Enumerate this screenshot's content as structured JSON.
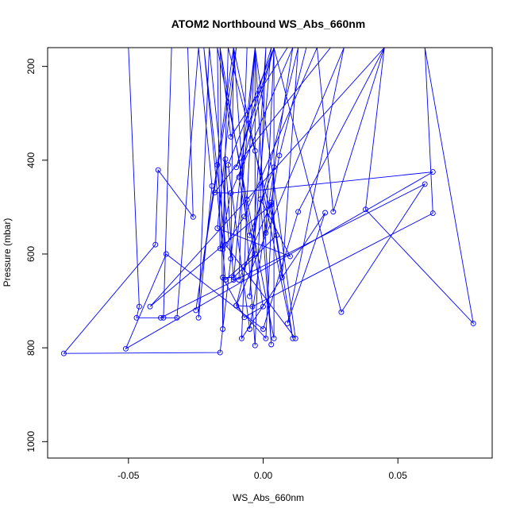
{
  "chart_data": {
    "type": "line",
    "title": "ATOM2 Northbound WS_Abs_660nm",
    "xlabel": "WS_Abs_660nm",
    "ylabel": "Pressure (mbar)",
    "xlim": [
      -0.08,
      0.085
    ],
    "ylim": [
      1035,
      160
    ],
    "y_reversed": true,
    "x_ticks": [
      -0.05,
      0.0,
      0.05
    ],
    "x_tick_labels": [
      "-0.05",
      "0.00",
      "0.05"
    ],
    "y_ticks": [
      200,
      400,
      600,
      800,
      1000
    ],
    "y_tick_labels": [
      "200",
      "400",
      "600",
      "800",
      "1000"
    ],
    "grid": false,
    "legend": "none",
    "series_color": "#0000ff",
    "series": [
      {
        "points": [
          [
            -0.05,
            160
          ],
          [
            -0.046,
            712
          ],
          [
            -0.047,
            736
          ],
          [
            -0.037,
            736
          ],
          [
            -0.034,
            160
          ],
          [
            -0.028,
            160
          ],
          [
            -0.026,
            521
          ],
          [
            -0.039,
            421
          ],
          [
            -0.04,
            580
          ],
          [
            -0.074,
            812
          ],
          [
            -0.016,
            810
          ],
          [
            -0.003,
            160
          ],
          [
            -0.011,
            655
          ],
          [
            -0.014,
            398
          ],
          [
            -0.015,
            760
          ],
          [
            -0.016,
            160
          ],
          [
            0.025,
            160
          ],
          [
            -0.018,
            469
          ],
          [
            -0.012,
            470
          ],
          [
            -0.016,
            588
          ],
          [
            -0.017,
            160
          ],
          [
            0.004,
            780
          ],
          [
            0.004,
            160
          ],
          [
            -0.013,
            410
          ],
          [
            -0.005,
            760
          ],
          [
            0.011,
            160
          ],
          [
            -0.012,
            470
          ],
          [
            0.063,
            425
          ],
          [
            -0.051,
            802
          ],
          [
            -0.036,
            600
          ],
          [
            0.0,
            760
          ],
          [
            0.013,
            510
          ],
          [
            0.045,
            160
          ],
          [
            0.038,
            505
          ],
          [
            0.078,
            748
          ],
          [
            0.06,
            160
          ],
          [
            0.063,
            513
          ],
          [
            -0.004,
            712
          ],
          [
            -0.01,
            710
          ],
          [
            0.03,
            160
          ],
          [
            0.009,
            748
          ],
          [
            0.023,
            512
          ],
          [
            -0.008,
            780
          ],
          [
            -0.006,
            484
          ],
          [
            -0.003,
            160
          ],
          [
            0.012,
            780
          ],
          [
            -0.014,
            580
          ],
          [
            -0.022,
            160
          ],
          [
            -0.014,
            655
          ],
          [
            -0.003,
            600
          ],
          [
            -0.003,
            160
          ],
          [
            0.003,
            793
          ],
          [
            -0.001,
            483
          ],
          [
            0.01,
            605
          ],
          [
            -0.017,
            545
          ],
          [
            -0.01,
            160
          ],
          [
            -0.025,
            720
          ],
          [
            -0.017,
            410
          ],
          [
            -0.011,
            160
          ],
          [
            -0.003,
            380
          ],
          [
            0.011,
            780
          ],
          [
            0.003,
            490
          ],
          [
            -0.009,
            655
          ],
          [
            -0.006,
            160
          ],
          [
            0.016,
            160
          ],
          [
            0.006,
            390
          ],
          [
            0.001,
            555
          ],
          [
            0.004,
            160
          ],
          [
            0.029,
            724
          ],
          [
            0.06,
            451
          ],
          [
            -0.038,
            736
          ],
          [
            -0.032,
            736
          ],
          [
            -0.024,
            160
          ],
          [
            -0.019,
            455
          ],
          [
            -0.024,
            736
          ],
          [
            -0.02,
            160
          ],
          [
            -0.012,
            610
          ],
          [
            -0.011,
            160
          ],
          [
            -0.003,
            795
          ],
          [
            0.001,
            160
          ],
          [
            -0.005,
            690
          ],
          [
            0.003,
            160
          ],
          [
            -0.01,
            415
          ],
          [
            0.004,
            160
          ],
          [
            -0.009,
            436
          ],
          [
            -0.005,
            560
          ],
          [
            0.004,
            415
          ],
          [
            0.001,
            780
          ],
          [
            -0.01,
            710
          ],
          [
            0.013,
            160
          ],
          [
            0.007,
            650
          ],
          [
            0.003,
            495
          ],
          [
            -0.042,
            712
          ],
          [
            0.045,
            160
          ],
          [
            0.026,
            510
          ],
          [
            0.02,
            160
          ],
          [
            -0.007,
            520
          ],
          [
            -0.015,
            590
          ],
          [
            -0.013,
            160
          ],
          [
            0.005,
            560
          ],
          [
            -0.011,
            650
          ],
          [
            -0.015,
            650
          ],
          [
            -0.007,
            735
          ],
          [
            0.0,
            712
          ],
          [
            -0.016,
            160
          ],
          [
            -0.012,
            350
          ],
          [
            0.009,
            160
          ]
        ]
      }
    ]
  }
}
